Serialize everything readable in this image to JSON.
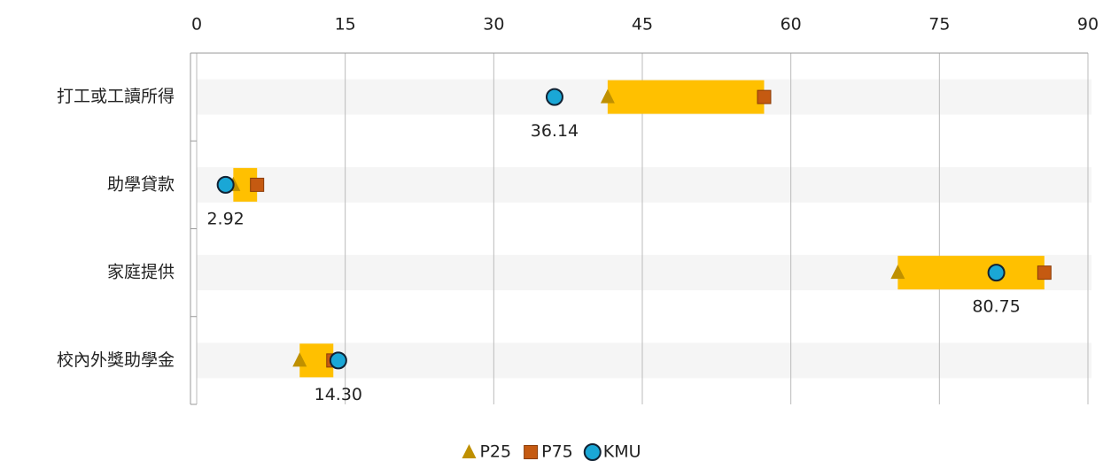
{
  "chart_data": {
    "type": "range",
    "categories": [
      "打工或工讀所得",
      "助學貸款",
      "家庭提供",
      "校內外獎助學金"
    ],
    "series": [
      {
        "name": "P25",
        "color": "#bf9000",
        "marker": "triangle",
        "values": [
          41.5,
          3.7,
          70.8,
          10.4
        ]
      },
      {
        "name": "P75",
        "color": "#c55a11",
        "marker": "square",
        "values": [
          57.3,
          6.1,
          85.6,
          13.8
        ]
      },
      {
        "name": "KMU",
        "color": "#1aa7d6",
        "marker": "circle",
        "values": [
          36.14,
          2.92,
          80.75,
          14.3
        ],
        "value_labels": [
          "36.14",
          "2.92",
          "80.75",
          "14.30"
        ]
      }
    ],
    "range_color": "#ffc000",
    "xlim": [
      0,
      90
    ],
    "xticks": [
      0,
      15,
      30,
      45,
      60,
      75,
      90
    ],
    "grid": true
  }
}
